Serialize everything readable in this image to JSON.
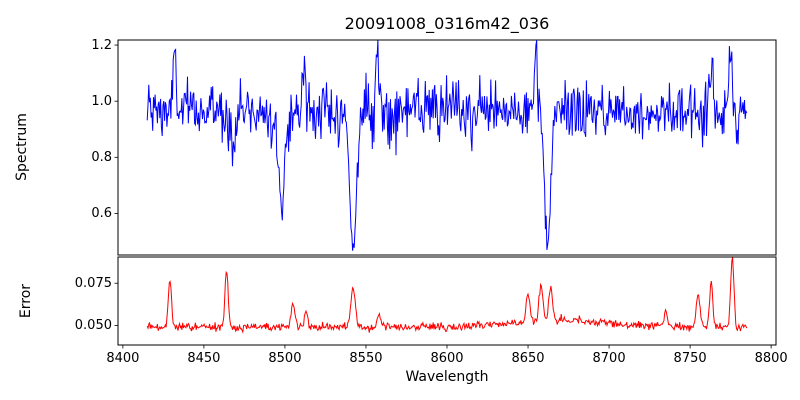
{
  "figure": {
    "background": "#ffffff"
  },
  "axes": {
    "title": "20091008_0316m42_036",
    "xlabel": "Wavelength",
    "xlim": [
      8397,
      8803
    ],
    "xticks": [
      8400,
      8450,
      8500,
      8550,
      8600,
      8650,
      8700,
      8750,
      8800
    ],
    "xtick_labels": [
      "8400",
      "8450",
      "8500",
      "8550",
      "8600",
      "8650",
      "8700",
      "8750",
      "8800"
    ],
    "spine_color": "#000000"
  },
  "chart_data": [
    {
      "type": "line",
      "name": "spectrum",
      "ylabel": "Spectrum",
      "color": "#0000ff",
      "line_width": 1,
      "ylim": [
        0.452,
        1.218
      ],
      "yticks": [
        0.6,
        0.8,
        1.0,
        1.2
      ],
      "ytick_labels": [
        "0.6",
        "0.8",
        "1.0",
        "1.2"
      ],
      "x_range": [
        8415,
        8785
      ],
      "n_points": 760,
      "baseline": 0.965,
      "noise_sigma": 0.05,
      "absorption_lines": [
        {
          "center": 8468,
          "min_value": 0.82,
          "sigma_A": 1.1
        },
        {
          "center": 8498,
          "min_value": 0.61,
          "sigma_A": 1.9
        },
        {
          "center": 8542,
          "min_value": 0.48,
          "sigma_A": 2.1
        },
        {
          "center": 8662,
          "min_value": 0.495,
          "sigma_A": 2.0
        }
      ],
      "spikes": [
        {
          "center": 8432,
          "peak": 1.17,
          "sigma_A": 0.9
        },
        {
          "center": 8512,
          "peak": 1.14,
          "sigma_A": 0.9
        },
        {
          "center": 8557,
          "peak": 1.18,
          "sigma_A": 0.9
        },
        {
          "center": 8655,
          "peak": 1.17,
          "sigma_A": 0.9
        },
        {
          "center": 8763,
          "peak": 1.12,
          "sigma_A": 0.9
        },
        {
          "center": 8775,
          "peak": 1.16,
          "sigma_A": 0.9
        }
      ]
    },
    {
      "type": "line",
      "name": "error",
      "ylabel": "Error",
      "color": "#ff0000",
      "line_width": 1,
      "ylim": [
        0.0385,
        0.0905
      ],
      "yticks": [
        0.05,
        0.075
      ],
      "ytick_labels": [
        "0.050",
        "0.075"
      ],
      "x_range": [
        8415,
        8785
      ],
      "n_points": 760,
      "baseline": 0.049,
      "noise_sigma": 0.0012,
      "spikes": [
        {
          "center": 8429,
          "peak": 0.077,
          "sigma_A": 1.0
        },
        {
          "center": 8464,
          "peak": 0.083,
          "sigma_A": 1.0
        },
        {
          "center": 8505,
          "peak": 0.062,
          "sigma_A": 1.2
        },
        {
          "center": 8513,
          "peak": 0.058,
          "sigma_A": 1.0
        },
        {
          "center": 8542,
          "peak": 0.072,
          "sigma_A": 1.4
        },
        {
          "center": 8558,
          "peak": 0.057,
          "sigma_A": 1.0
        },
        {
          "center": 8650,
          "peak": 0.064,
          "sigma_A": 1.2
        },
        {
          "center": 8658,
          "peak": 0.07,
          "sigma_A": 1.2
        },
        {
          "center": 8664,
          "peak": 0.068,
          "sigma_A": 1.2
        },
        {
          "center": 8670,
          "peak": 0.053,
          "sigma_A": 30
        },
        {
          "center": 8735,
          "peak": 0.058,
          "sigma_A": 1.0
        },
        {
          "center": 8755,
          "peak": 0.068,
          "sigma_A": 1.2
        },
        {
          "center": 8763,
          "peak": 0.075,
          "sigma_A": 1.0
        },
        {
          "center": 8776,
          "peak": 0.09,
          "sigma_A": 1.0
        }
      ]
    }
  ]
}
